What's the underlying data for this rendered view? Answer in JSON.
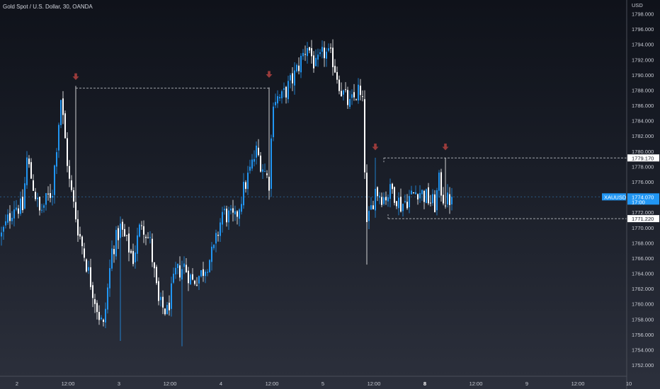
{
  "title": "Gold Spot / U.S. Dollar, 30, OANDA",
  "colors": {
    "up": "#2196f3",
    "down": "#ffffff",
    "marker": "#9a3b3b",
    "price_badge": "#2196f3",
    "axis_border": "#4a4e58"
  },
  "chart_data": {
    "type": "candlestick",
    "title": "Gold Spot / U.S. Dollar, 30, OANDA",
    "currency": "USD",
    "ylim": [
      1750.5,
      1799
    ],
    "y_ticks": [
      "1798.000",
      "1796.000",
      "1794.000",
      "1792.000",
      "1790.000",
      "1788.000",
      "1786.000",
      "1784.000",
      "1782.000",
      "1780.000",
      "1778.000",
      "1776.000",
      "1772.000",
      "1770.000",
      "1768.000",
      "1766.000",
      "1764.000",
      "1762.000",
      "1760.000",
      "1758.000",
      "1756.000",
      "1754.000",
      "1752.000"
    ],
    "x_ticks": [
      {
        "label": "2",
        "bold": false
      },
      {
        "label": "12:00",
        "bold": false
      },
      {
        "label": "3",
        "bold": false
      },
      {
        "label": "12:00",
        "bold": false
      },
      {
        "label": "4",
        "bold": false
      },
      {
        "label": "12:00",
        "bold": false
      },
      {
        "label": "5",
        "bold": false
      },
      {
        "label": "12:00",
        "bold": false
      },
      {
        "label": "8",
        "bold": true
      },
      {
        "label": "12:00",
        "bold": false
      },
      {
        "label": "9",
        "bold": false
      },
      {
        "label": "12:00",
        "bold": false
      },
      {
        "label": "10",
        "bold": false
      }
    ],
    "x_tick_candles": [
      0,
      24,
      48,
      72,
      96,
      120,
      144,
      168,
      192,
      216,
      240,
      264,
      288
    ],
    "waypoints": [
      [
        0,
        1769
      ],
      [
        6,
        1773
      ],
      [
        10,
        1772.5
      ],
      [
        12,
        1779
      ],
      [
        18,
        1772
      ],
      [
        24,
        1775
      ],
      [
        28,
        1787
      ],
      [
        32,
        1776
      ],
      [
        36,
        1770
      ],
      [
        42,
        1763
      ],
      [
        46,
        1758.5
      ],
      [
        48,
        1757
      ],
      [
        52,
        1767
      ],
      [
        56,
        1770
      ],
      [
        62,
        1766
      ],
      [
        66,
        1771
      ],
      [
        70,
        1768
      ],
      [
        74,
        1760
      ],
      [
        78,
        1759
      ],
      [
        82,
        1764
      ],
      [
        86,
        1765
      ],
      [
        90,
        1763
      ],
      [
        94,
        1764
      ],
      [
        100,
        1767
      ],
      [
        104,
        1772
      ],
      [
        110,
        1771
      ],
      [
        114,
        1775
      ],
      [
        120,
        1780
      ],
      [
        126,
        1776
      ],
      [
        128,
        1787
      ],
      [
        132,
        1787
      ],
      [
        138,
        1790
      ],
      [
        144,
        1794
      ],
      [
        148,
        1791
      ],
      [
        152,
        1793
      ],
      [
        156,
        1792
      ],
      [
        160,
        1788
      ],
      [
        164,
        1786
      ],
      [
        168,
        1788
      ],
      [
        170,
        1786
      ],
      [
        172,
        1770
      ],
      [
        176,
        1775
      ],
      [
        180,
        1774
      ],
      [
        184,
        1775
      ],
      [
        188,
        1773
      ],
      [
        192,
        1774
      ],
      [
        196,
        1775
      ],
      [
        200,
        1774
      ],
      [
        204,
        1773
      ],
      [
        206,
        1776
      ],
      [
        208,
        1774
      ],
      [
        210,
        1773.5
      ],
      [
        212,
        1774.07
      ]
    ],
    "candle_count": 213,
    "current_price": {
      "value": 1774.07,
      "label": "1774.070",
      "time": "17:00",
      "symbol": "XAUUSD"
    },
    "levels": [
      {
        "value": 1779.17,
        "label": "1779.170",
        "from_candle": 180
      },
      {
        "value": 1771.22,
        "label": "1771.220",
        "from_candle": 182
      }
    ],
    "resistance_line": {
      "value": 1788.3,
      "from_candle": 35,
      "to_candle": 126
    },
    "markers": [
      {
        "candle": 35,
        "value": 1789.6
      },
      {
        "candle": 126,
        "value": 1789.9
      },
      {
        "candle": 176,
        "value": 1780.4
      },
      {
        "candle": 209,
        "value": 1780.4
      }
    ]
  }
}
